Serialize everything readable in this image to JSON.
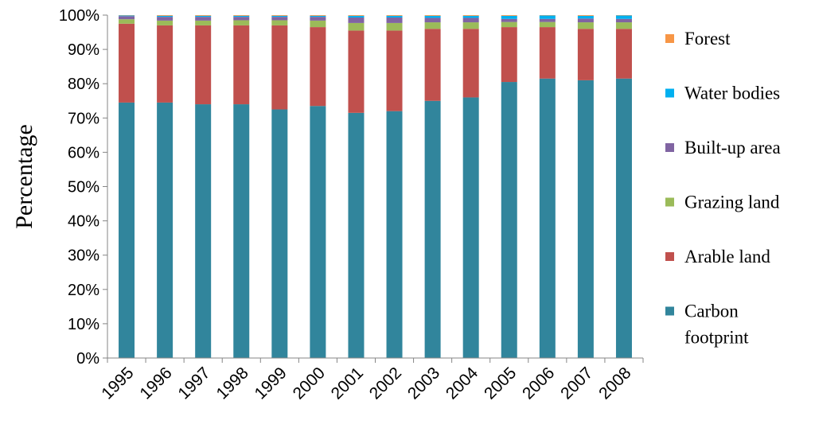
{
  "chart_data": {
    "type": "bar",
    "stacked": true,
    "normalized": true,
    "title": "",
    "xlabel": "",
    "ylabel": "Percentage",
    "ylim": [
      0,
      100
    ],
    "yticks": [
      "0%",
      "10%",
      "20%",
      "30%",
      "40%",
      "50%",
      "60%",
      "70%",
      "80%",
      "90%",
      "100%"
    ],
    "grid": false,
    "legend_position": "right",
    "categories": [
      "1995",
      "1996",
      "1997",
      "1998",
      "1999",
      "2000",
      "2001",
      "2002",
      "2003",
      "2004",
      "2005",
      "2006",
      "2007",
      "2008"
    ],
    "series": [
      {
        "name": "Carbon footprint",
        "color": "#31859C",
        "values": [
          74.5,
          74.5,
          74,
          74,
          72.5,
          73.5,
          71.5,
          72,
          75,
          76,
          80.5,
          81.5,
          81,
          81.5
        ]
      },
      {
        "name": "Arable land",
        "color": "#C0504D",
        "values": [
          23,
          22.5,
          23,
          23,
          24.5,
          23,
          24,
          23.5,
          21,
          20,
          16,
          15,
          15,
          14.5
        ]
      },
      {
        "name": "Grazing land",
        "color": "#9BBB59",
        "values": [
          1.3,
          1.4,
          1.4,
          1.5,
          1.5,
          1.9,
          2.2,
          2.2,
          1.9,
          1.9,
          1.5,
          1.5,
          1.9,
          1.9
        ]
      },
      {
        "name": "Built-up area",
        "color": "#8064A2",
        "values": [
          0.9,
          1.1,
          1.1,
          1.0,
          1.0,
          1.1,
          1.6,
          1.6,
          1.3,
          1.3,
          0.9,
          0.9,
          1.1,
          1.0
        ]
      },
      {
        "name": "Water bodies",
        "color": "#00B0F0",
        "values": [
          0.2,
          0.3,
          0.3,
          0.3,
          0.3,
          0.3,
          0.5,
          0.5,
          0.6,
          0.6,
          0.9,
          1.0,
          0.8,
          1.0
        ]
      },
      {
        "name": "Forest",
        "color": "#F79646",
        "values": [
          0.1,
          0.2,
          0.2,
          0.2,
          0.2,
          0.2,
          0.2,
          0.2,
          0.2,
          0.2,
          0.2,
          0.1,
          0.2,
          0.1
        ]
      }
    ],
    "legend": [
      {
        "label": "Forest",
        "color": "#F79646"
      },
      {
        "label": "Water bodies",
        "color": "#00B0F0"
      },
      {
        "label": "Built-up area",
        "color": "#8064A2"
      },
      {
        "label": "Grazing land",
        "color": "#9BBB59"
      },
      {
        "label": "Arable land",
        "color": "#C0504D"
      },
      {
        "label": "Carbon",
        "label2": "footprint",
        "color": "#31859C"
      }
    ]
  }
}
